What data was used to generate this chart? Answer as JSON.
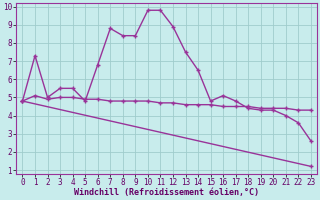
{
  "xlabel": "Windchill (Refroidissement éolien,°C)",
  "ylabel": "",
  "xlim": [
    -0.5,
    23.5
  ],
  "ylim": [
    0.8,
    10.2
  ],
  "xticks": [
    0,
    1,
    2,
    3,
    4,
    5,
    6,
    7,
    8,
    9,
    10,
    11,
    12,
    13,
    14,
    15,
    16,
    17,
    18,
    19,
    20,
    21,
    22,
    23
  ],
  "yticks": [
    1,
    2,
    3,
    4,
    5,
    6,
    7,
    8,
    9,
    10
  ],
  "bg_color": "#c8ecec",
  "grid_color": "#a0cccc",
  "line_color": "#993399",
  "line1_x": [
    0,
    1,
    2,
    3,
    4,
    5,
    6,
    7,
    8,
    9,
    10,
    11,
    12,
    13,
    14,
    15,
    16,
    17,
    18,
    19,
    20,
    21,
    22,
    23
  ],
  "line1_y": [
    4.8,
    7.3,
    5.0,
    5.5,
    5.5,
    4.8,
    6.8,
    8.8,
    8.4,
    8.4,
    9.8,
    9.8,
    8.9,
    7.5,
    6.5,
    4.8,
    5.1,
    4.8,
    4.4,
    4.3,
    4.3,
    4.0,
    3.6,
    2.6
  ],
  "line2_x": [
    0,
    1,
    2,
    3,
    4,
    5,
    6,
    7,
    8,
    9,
    10,
    11,
    12,
    13,
    14,
    15,
    16,
    17,
    18,
    19,
    20,
    21,
    22,
    23
  ],
  "line2_y": [
    4.8,
    5.1,
    4.9,
    5.0,
    5.0,
    4.9,
    4.9,
    4.8,
    4.8,
    4.8,
    4.8,
    4.7,
    4.7,
    4.6,
    4.6,
    4.6,
    4.5,
    4.5,
    4.5,
    4.4,
    4.4,
    4.4,
    4.3,
    4.3
  ],
  "line3_x": [
    0,
    23
  ],
  "line3_y": [
    4.8,
    1.2
  ],
  "tick_fontsize": 5.5,
  "xlabel_fontsize": 6.0
}
